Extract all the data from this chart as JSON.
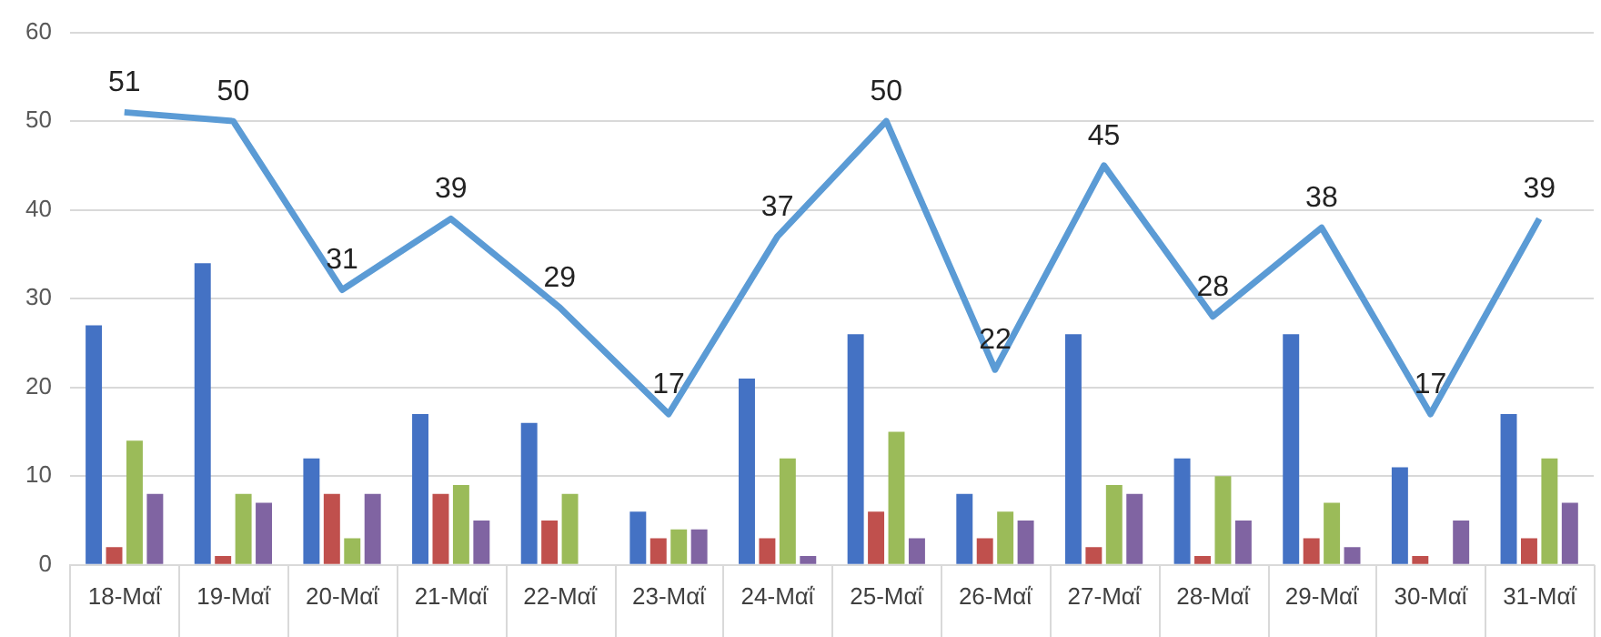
{
  "chart_data": {
    "type": "bar",
    "categories": [
      "18-Μαΐ",
      "19-Μαΐ",
      "20-Μαΐ",
      "21-Μαΐ",
      "22-Μαΐ",
      "23-Μαΐ",
      "24-Μαΐ",
      "25-Μαΐ",
      "26-Μαΐ",
      "27-Μαΐ",
      "28-Μαΐ",
      "29-Μαΐ",
      "30-Μαΐ",
      "31-Μαΐ"
    ],
    "series": [
      {
        "type": "line",
        "color": "#5b9bd5",
        "values": [
          51,
          50,
          31,
          39,
          29,
          17,
          37,
          50,
          22,
          45,
          28,
          38,
          17,
          39
        ],
        "value_labels": [
          "51",
          "50",
          "31",
          "39",
          "29",
          "17",
          "37",
          "50",
          "22",
          "45",
          "28",
          "38",
          "17",
          "39"
        ]
      },
      {
        "color": "#4472c4",
        "values": [
          27,
          34,
          12,
          17,
          16,
          6,
          21,
          26,
          8,
          26,
          12,
          26,
          11,
          17
        ]
      },
      {
        "color": "#c0504d",
        "values": [
          2,
          1,
          8,
          8,
          5,
          3,
          3,
          6,
          3,
          2,
          1,
          3,
          1,
          3
        ]
      },
      {
        "color": "#9bbb59",
        "values": [
          14,
          8,
          3,
          9,
          8,
          4,
          12,
          15,
          6,
          9,
          10,
          7,
          0,
          12
        ]
      },
      {
        "color": "#8064a2",
        "values": [
          8,
          7,
          8,
          5,
          0,
          4,
          1,
          3,
          5,
          8,
          5,
          2,
          5,
          7
        ]
      }
    ],
    "ylim": [
      0,
      60
    ],
    "yticks": [
      0,
      10,
      20,
      30,
      40,
      50,
      60
    ],
    "grid": "y",
    "legend": false,
    "marker": "none"
  }
}
